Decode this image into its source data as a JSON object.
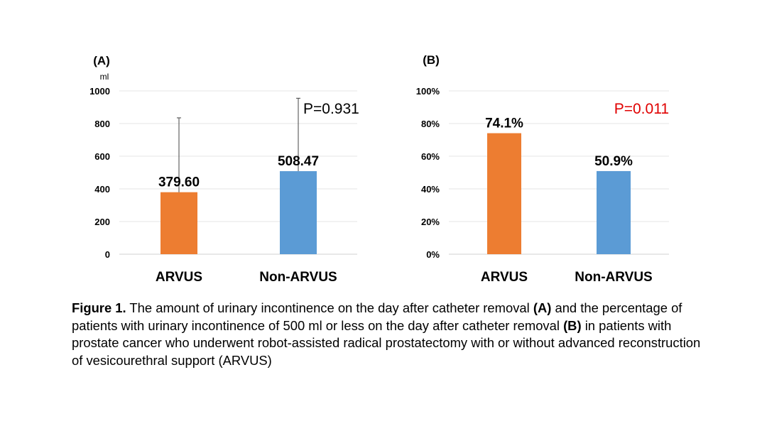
{
  "chart_data": [
    {
      "type": "bar",
      "panel": "(A)",
      "unit": "ml",
      "categories": [
        "ARVUS",
        "Non-ARVUS"
      ],
      "values": [
        379.6,
        508.47
      ],
      "value_labels": [
        "379.60",
        "508.47"
      ],
      "error_upper": [
        835,
        955
      ],
      "colors": [
        "#ED7D31",
        "#5B9BD5"
      ],
      "yticks": [
        "0",
        "200",
        "400",
        "600",
        "800",
        "1000"
      ],
      "ytick_values": [
        0,
        200,
        400,
        600,
        800,
        1000
      ],
      "ylim": [
        0,
        1000
      ],
      "annotation": "P=0.931",
      "annotation_color": "#000000",
      "grid": true
    },
    {
      "type": "bar",
      "panel": "(B)",
      "categories": [
        "ARVUS",
        "Non-ARVUS"
      ],
      "values": [
        74.1,
        50.9
      ],
      "value_labels": [
        "74.1%",
        "50.9%"
      ],
      "colors": [
        "#ED7D31",
        "#5B9BD5"
      ],
      "yticks": [
        "0%",
        "20%",
        "40%",
        "60%",
        "80%",
        "100%"
      ],
      "ytick_values": [
        0,
        20,
        40,
        60,
        80,
        100
      ],
      "ylim": [
        0,
        100
      ],
      "annotation": "P=0.011",
      "annotation_color": "#E00000",
      "grid": true
    }
  ],
  "caption": {
    "label": "Figure 1.",
    "t1": " The amount of urinary incontinence on the day after catheter removal ",
    "b1": "(A)",
    "t2": " and the percentage of patients with urinary incontinence of 500 ml or less on the day after catheter removal ",
    "b2": "(B)",
    "t3": " in patients with prostate cancer who underwent robot-assisted radical prostatectomy with or without advanced reconstruction of vesicourethral support (ARVUS)"
  }
}
